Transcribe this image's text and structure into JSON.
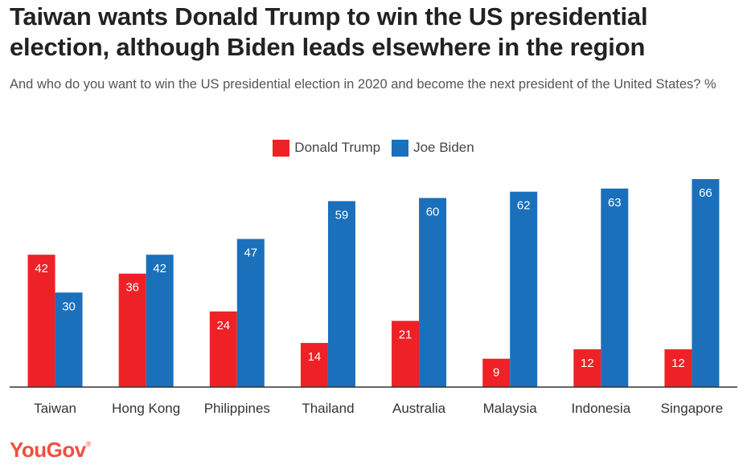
{
  "title": "Taiwan wants Donald Trump to win the US presidential election, although Biden leads elsewhere in the region",
  "subtitle": "And who do you want to win the US presidential election in 2020 and become the next president of the United States? %",
  "logo": "YouGov",
  "logo_mark": "®",
  "colors": {
    "trump": "#ee2226",
    "biden": "#1a70bb",
    "axis": "#333333"
  },
  "chart_data": {
    "type": "bar",
    "title": "Taiwan wants Donald Trump to win the US presidential election, although Biden leads elsewhere in the region",
    "subtitle": "And who do you want to win the US presidential election in 2020 and become the next president of the United States? %",
    "categories": [
      "Taiwan",
      "Hong Kong",
      "Philippines",
      "Thailand",
      "Australia",
      "Malaysia",
      "Indonesia",
      "Singapore"
    ],
    "series": [
      {
        "name": "Donald Trump",
        "values": [
          42,
          36,
          24,
          14,
          21,
          9,
          12,
          12
        ]
      },
      {
        "name": "Joe Biden",
        "values": [
          30,
          42,
          47,
          59,
          60,
          62,
          63,
          66
        ]
      }
    ],
    "ylim": [
      0,
      66
    ],
    "grid": false,
    "legend": "top-center",
    "xlabel": "",
    "ylabel": ""
  }
}
